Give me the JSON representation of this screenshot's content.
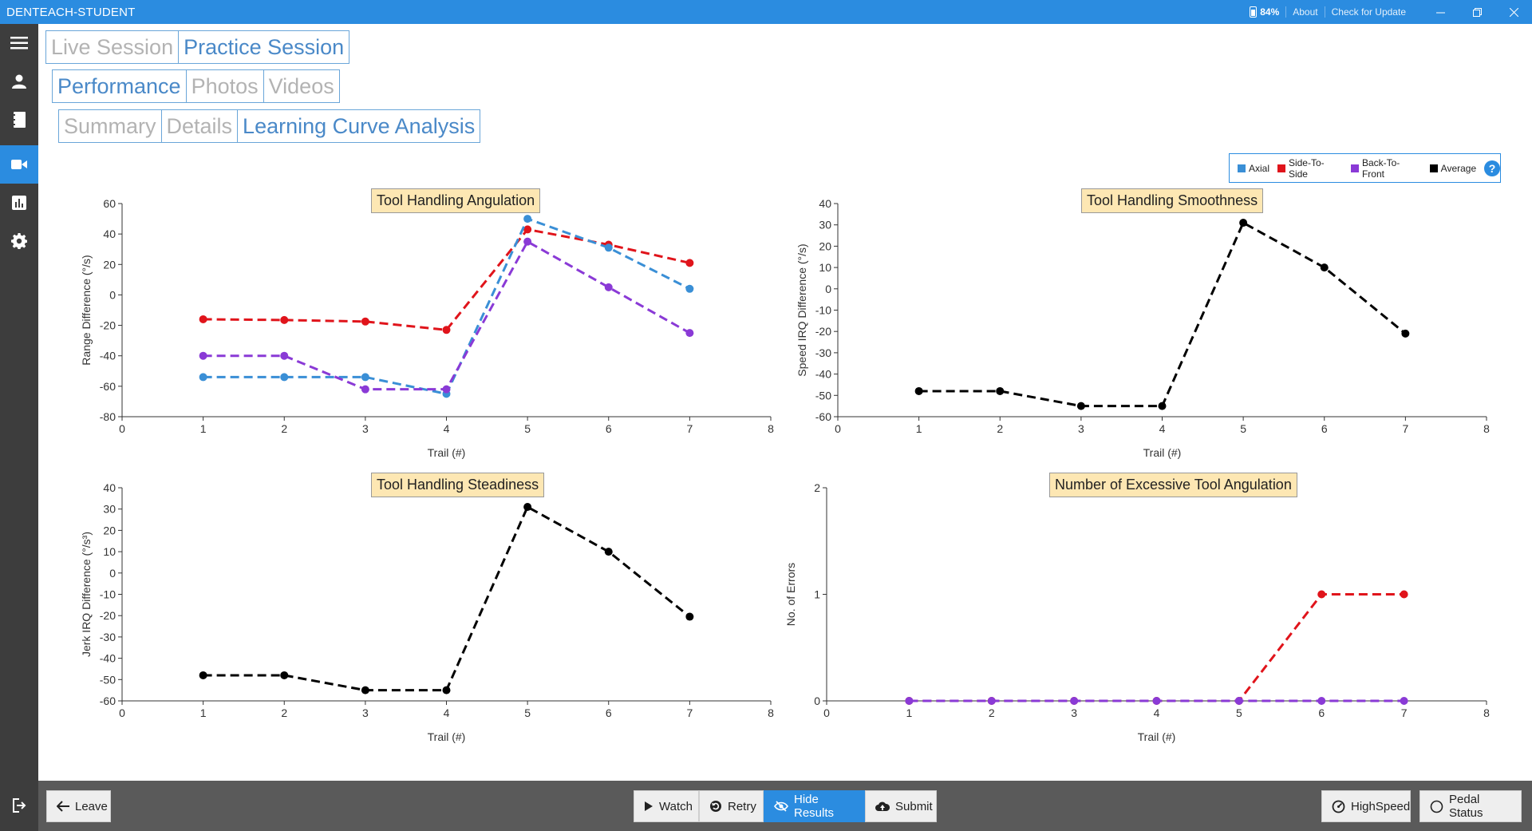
{
  "app": {
    "title": "DENTEACH-STUDENT",
    "battery": "84%",
    "about": "About",
    "check_update": "Check for Update"
  },
  "colors": {
    "accent": "#2b8ce0",
    "axial": "#3a8fd6",
    "side_to_side": "#e0141b",
    "back_to_front": "#8a3ad6",
    "average": "#000000",
    "title_box": "#fde7b3"
  },
  "sidebar": {
    "items": [
      "menu-icon",
      "user-icon",
      "notebook-icon",
      "video-icon",
      "chart-icon",
      "gear-icon",
      "logout-icon"
    ],
    "active": "video-icon"
  },
  "tabs": {
    "session": [
      {
        "label": "Live Session",
        "active": false
      },
      {
        "label": "Practice Session",
        "active": true
      }
    ],
    "view": [
      {
        "label": "Performance",
        "active": true
      },
      {
        "label": "Photos",
        "active": false
      },
      {
        "label": "Videos",
        "active": false
      }
    ],
    "analysis": [
      {
        "label": "Summary",
        "active": false
      },
      {
        "label": "Details",
        "active": false
      },
      {
        "label": "Learning Curve Analysis",
        "active": true
      }
    ]
  },
  "legend": {
    "items": [
      {
        "label": "Axial",
        "color": "#3a8fd6"
      },
      {
        "label": "Side-To-Side",
        "color": "#e0141b"
      },
      {
        "label": "Back-To-Front",
        "color": "#8a3ad6"
      },
      {
        "label": "Average",
        "color": "#000000"
      }
    ],
    "help": "?"
  },
  "chart_data": [
    {
      "type": "line",
      "title": "Tool Handling Angulation",
      "xlabel": "Trail (#)",
      "ylabel": "Range Difference (°/s)",
      "xlim": [
        0,
        8
      ],
      "ylim": [
        -80,
        60
      ],
      "xticks": [
        0,
        1,
        2,
        3,
        4,
        5,
        6,
        7,
        8
      ],
      "yticks": [
        -80,
        -60,
        -40,
        -20,
        0,
        20,
        40,
        60
      ],
      "grid": false,
      "x": [
        1,
        2,
        3,
        4,
        5,
        6,
        7
      ],
      "series": [
        {
          "name": "Side-To-Side",
          "color": "#e0141b",
          "values": [
            -16,
            -16.5,
            -17.5,
            -23,
            43,
            33,
            21
          ]
        },
        {
          "name": "Axial",
          "color": "#3a8fd6",
          "values": [
            -54,
            -54,
            -54,
            -65,
            50,
            31,
            4
          ]
        },
        {
          "name": "Back-To-Front",
          "color": "#8a3ad6",
          "values": [
            -40,
            -40,
            -62,
            -62,
            35,
            5,
            -25
          ]
        }
      ]
    },
    {
      "type": "line",
      "title": "Tool Handling Smoothness",
      "xlabel": "Trail (#)",
      "ylabel": "Speed IRQ Difference (°/s)",
      "xlim": [
        0,
        8
      ],
      "ylim": [
        -60,
        40
      ],
      "xticks": [
        0,
        1,
        2,
        3,
        4,
        5,
        6,
        7,
        8
      ],
      "yticks": [
        -60,
        -50,
        -40,
        -30,
        -20,
        -10,
        0,
        10,
        20,
        30,
        40
      ],
      "grid": false,
      "x": [
        1,
        2,
        3,
        4,
        5,
        6,
        7
      ],
      "series": [
        {
          "name": "Average",
          "color": "#000000",
          "values": [
            -48,
            -48,
            -55,
            -55,
            31,
            10,
            -21
          ]
        }
      ]
    },
    {
      "type": "line",
      "title": "Tool Handling Steadiness",
      "xlabel": "Trail (#)",
      "ylabel": "Jerk IRQ Difference (°/s³)",
      "xlim": [
        0,
        8
      ],
      "ylim": [
        -60,
        40
      ],
      "xticks": [
        0,
        1,
        2,
        3,
        4,
        5,
        6,
        7,
        8
      ],
      "yticks": [
        -60,
        -50,
        -40,
        -30,
        -20,
        -10,
        0,
        10,
        20,
        30,
        40
      ],
      "grid": false,
      "x": [
        1,
        2,
        3,
        4,
        5,
        6,
        7
      ],
      "series": [
        {
          "name": "Average",
          "color": "#000000",
          "values": [
            -48,
            -48,
            -55,
            -55,
            31,
            10,
            -20.5
          ]
        }
      ]
    },
    {
      "type": "line",
      "title": "Number of Excessive Tool Angulation",
      "xlabel": "Trail (#)",
      "ylabel": "No. of Errors",
      "xlim": [
        0,
        8
      ],
      "ylim": [
        0,
        2
      ],
      "xticks": [
        0,
        1,
        2,
        3,
        4,
        5,
        6,
        7,
        8
      ],
      "yticks": [
        0,
        1,
        2
      ],
      "grid": false,
      "x": [
        1,
        2,
        3,
        4,
        5,
        6,
        7
      ],
      "series": [
        {
          "name": "Side-To-Side",
          "color": "#e0141b",
          "values": [
            0,
            0,
            0,
            0,
            0,
            1,
            1
          ]
        },
        {
          "name": "Back-To-Front",
          "color": "#8a3ad6",
          "values": [
            0,
            0,
            0,
            0,
            0,
            0,
            0
          ]
        }
      ]
    }
  ],
  "bottom": {
    "leave": "Leave",
    "watch": "Watch",
    "retry": "Retry",
    "hide_results": "Hide Results",
    "submit": "Submit",
    "highspeed": "HighSpeed",
    "pedal_status": "Pedal Status"
  }
}
